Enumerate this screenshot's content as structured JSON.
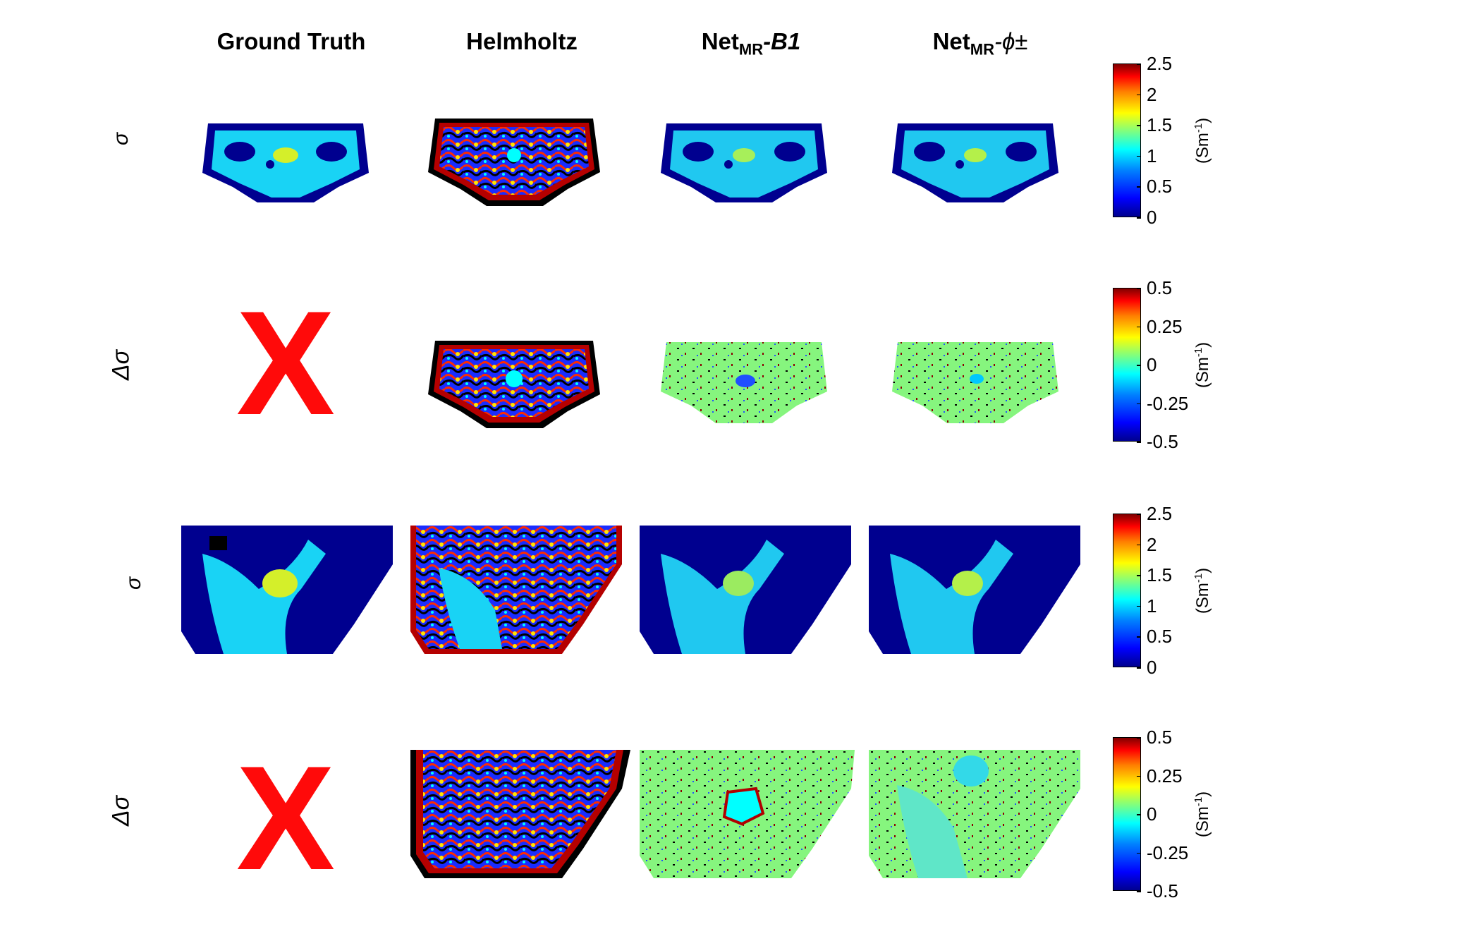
{
  "headers": {
    "ground_truth": "Ground Truth",
    "helmholtz": "Helmholtz",
    "netmr_b1_main": "Net",
    "netmr_b1_sub": "MR",
    "netmr_b1_suffix": "-B1",
    "netmr_phi_main": "Net",
    "netmr_phi_sub": "MR",
    "netmr_phi_suffix": "-ϕ±"
  },
  "rows": [
    {
      "label": "σ"
    },
    {
      "label": "Δσ"
    },
    {
      "label": "σ"
    },
    {
      "label": "Δσ"
    }
  ],
  "missing_mark": "X",
  "colorbars": [
    {
      "ticks": [
        "2.5",
        "2",
        "1.5",
        "1",
        "0.5",
        "0"
      ],
      "unit": "(Sm",
      "unit_sup": "-1",
      "unit_end": ")"
    },
    {
      "ticks": [
        "0.5",
        "0.25",
        "0",
        "-0.25",
        "-0.5"
      ],
      "unit": "(Sm",
      "unit_sup": "-1",
      "unit_end": ")"
    },
    {
      "ticks": [
        "2.5",
        "2",
        "1.5",
        "1",
        "0.5",
        "0"
      ],
      "unit": "(Sm",
      "unit_sup": "-1",
      "unit_end": ")"
    },
    {
      "ticks": [
        "0.5",
        "0.25",
        "0",
        "-0.25",
        "-0.5"
      ],
      "unit": "(Sm",
      "unit_sup": "-1",
      "unit_end": ")"
    }
  ],
  "colors": {
    "background_blue": "#00008f",
    "tissue_cyan": "#19d3f5",
    "difference_green": "#86f57e",
    "cross_red": "#ff0a0a"
  }
}
